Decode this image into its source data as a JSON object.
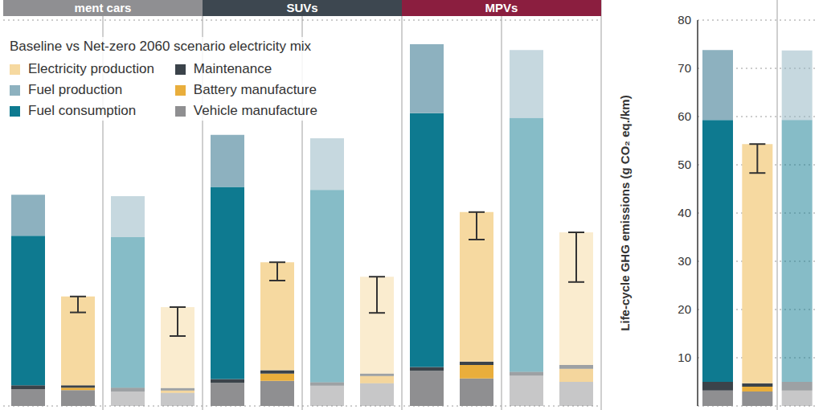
{
  "chart_data": [
    {
      "type": "bar",
      "stacked": true,
      "grid": true,
      "tick_labels": false,
      "legend": "top-left",
      "legend_title": "Baseline vs Net-zero 2060 scenario electricity mix",
      "categories": [
        null,
        null,
        null,
        null,
        null,
        null,
        null,
        null,
        null,
        null,
        null,
        null
      ],
      "groups": [
        {
          "name": "ment cars",
          "color": "#8f8f92"
        },
        {
          "name": "SUVs",
          "color": "#3d4750"
        },
        {
          "name": "MPVs",
          "color": "#8b1e3f"
        }
      ],
      "group_of": [
        0,
        0,
        0,
        0,
        1,
        1,
        1,
        1,
        2,
        2,
        2,
        2
      ],
      "net_zero": [
        false,
        false,
        true,
        true,
        false,
        false,
        true,
        true,
        false,
        false,
        true,
        true
      ],
      "ylim": [
        0,
        80
      ],
      "yticks": [
        0,
        10,
        20,
        30,
        40,
        50,
        60,
        70,
        80
      ],
      "series": [
        {
          "name": "Electricity production",
          "color": "#f6d9a0",
          "values": [
            0,
            18.4,
            0,
            16.8,
            0,
            22.4,
            0,
            20.1,
            0,
            31.0,
            0,
            27.5
          ],
          "error": [
            null,
            [
              3.3,
              0
            ],
            null,
            [
              6.0,
              0
            ],
            null,
            [
              3.8,
              0
            ],
            null,
            [
              7.5,
              0
            ],
            null,
            [
              5.7,
              0
            ],
            null,
            [
              10.3,
              0
            ]
          ]
        },
        {
          "name": "Fuel production",
          "color": "#8db1bf",
          "values": [
            8.5,
            0,
            8.5,
            0,
            10.8,
            0,
            10.7,
            0,
            14.3,
            0,
            14.1,
            0
          ]
        },
        {
          "name": "Fuel consumption",
          "color": "#0e7a90",
          "values": [
            31.0,
            0,
            31.2,
            0,
            39.8,
            0,
            39.9,
            0,
            52.6,
            0,
            52.6,
            0
          ]
        },
        {
          "name": "Maintenance",
          "color": "#3b434a",
          "values": [
            0.8,
            0.5,
            0.8,
            0.5,
            0.8,
            0.7,
            0.7,
            0.5,
            0.8,
            0.7,
            0.8,
            0.8
          ]
        },
        {
          "name": "Battery manufacture",
          "color": "#e9ae3c",
          "values": [
            0,
            0.5,
            0,
            0.5,
            0,
            1.5,
            0,
            1.5,
            0,
            2.8,
            0,
            2.7
          ]
        },
        {
          "name": "Vehicle manufacture",
          "color": "#8f8f91",
          "values": [
            3.5,
            3.3,
            3.0,
            2.7,
            4.8,
            5.2,
            4.2,
            4.7,
            7.3,
            5.7,
            6.3,
            5.0
          ]
        }
      ]
    },
    {
      "type": "bar",
      "stacked": true,
      "grid": true,
      "tick_labels": "y",
      "y_label": "Life-cycle GHG emissions (g CO₂ eq./km)",
      "categories": [
        null,
        null,
        null
      ],
      "net_zero": [
        false,
        false,
        true
      ],
      "ylim": [
        0,
        80
      ],
      "yticks": [
        10,
        20,
        30,
        40,
        50,
        60,
        70,
        80
      ],
      "series": [
        {
          "name": "Electricity production",
          "color": "#f6d9a0",
          "values": [
            0,
            49.6,
            0
          ],
          "error": [
            null,
            [
              6.0,
              0
            ],
            null
          ]
        },
        {
          "name": "Fuel production",
          "color": "#8db1bf",
          "values": [
            14.5,
            0,
            14.4
          ]
        },
        {
          "name": "Fuel consumption",
          "color": "#0e7a90",
          "values": [
            54.3,
            0,
            54.3
          ]
        },
        {
          "name": "Maintenance",
          "color": "#3b434a",
          "values": [
            1.8,
            0.7,
            1.8
          ]
        },
        {
          "name": "Battery manufacture",
          "color": "#e9ae3c",
          "values": [
            0,
            1.0,
            0
          ]
        },
        {
          "name": "Vehicle manufacture",
          "color": "#8f8f91",
          "values": [
            3.2,
            3.0,
            3.2
          ]
        }
      ]
    }
  ]
}
